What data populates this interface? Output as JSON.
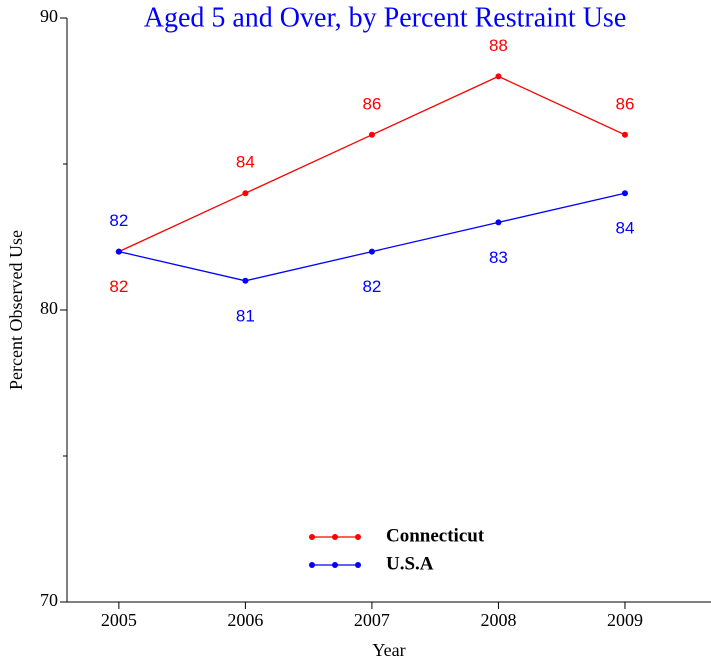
{
  "chart_data": {
    "type": "line",
    "title": "Aged 5 and Over, by Percent Restraint Use",
    "x_label": "Year",
    "y_label": "Percent Observed Use",
    "x": [
      2005,
      2006,
      2007,
      2008,
      2009
    ],
    "series": [
      {
        "name": "Connecticut",
        "color": "#ff0000",
        "values": [
          82,
          84,
          86,
          88,
          86
        ],
        "label_position": [
          "below",
          "above",
          "above",
          "above",
          "above"
        ]
      },
      {
        "name": "U.S.A",
        "color": "#0000ff",
        "values": [
          82,
          81,
          82,
          83,
          84
        ],
        "label_position": [
          "above",
          "below",
          "below",
          "below",
          "below"
        ]
      }
    ],
    "xlim": [
      2004.59,
      2009.68
    ],
    "xticks": [
      2005,
      2006,
      2007,
      2008,
      2009
    ],
    "ylim": [
      70,
      90
    ],
    "yticks": [
      70,
      80,
      90
    ],
    "yminor_ticks": [
      75,
      85
    ],
    "legend": "lower center",
    "title_color": "#0000ff"
  }
}
